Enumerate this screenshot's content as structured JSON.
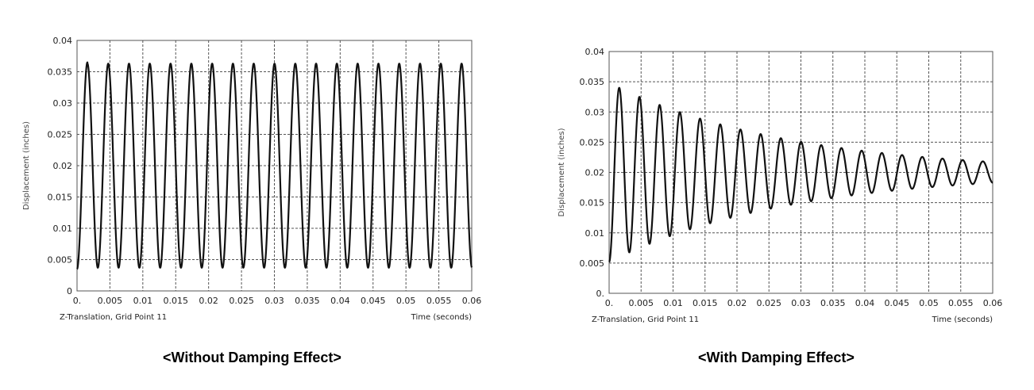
{
  "chart_data": [
    {
      "type": "line",
      "caption": "<Without Damping Effect>",
      "xlabel_left": "Z-Translation, Grid Point 11",
      "xlabel_right": "Time (seconds)",
      "ylabel": "Displacement (inches)",
      "xlim": [
        0,
        0.06
      ],
      "ylim": [
        0,
        0.04
      ],
      "xticks": [
        "0.",
        "0.005",
        "0.01",
        "0.015",
        "0.02",
        "0.025",
        "0.03",
        "0.035",
        "0.04",
        "0.045",
        "0.05",
        "0.055",
        "0.06"
      ],
      "yticks": [
        "0",
        "0.005",
        "0.01",
        "0.015",
        "0.02",
        "0.025",
        "0.03",
        "0.035",
        "0.04"
      ],
      "grid": true,
      "series": [
        {
          "period": 0.00316,
          "mean": 0.02,
          "first_peak": 0.0365,
          "steady_amplitude": 0.0163,
          "damping_ratio": 0
        }
      ]
    },
    {
      "type": "line",
      "caption": "<With Damping Effect>",
      "xlabel_left": "Z-Translation, Grid Point 11",
      "xlabel_right": "Time (seconds)",
      "ylabel": "Displacement (inches)",
      "xlim": [
        0,
        0.06
      ],
      "ylim": [
        0,
        0.04
      ],
      "xticks": [
        "0.",
        "0.005",
        "0.01",
        "0.015",
        "0.02",
        "0.025",
        "0.03",
        "0.035",
        "0.04",
        "0.045",
        "0.05",
        "0.055",
        "0.06"
      ],
      "yticks": [
        "0.",
        "0.005",
        "0.01",
        "0.015",
        "0.02",
        "0.025",
        "0.03",
        "0.035",
        "0.04"
      ],
      "grid": true,
      "series": [
        {
          "period": 0.00316,
          "mean": 0.02,
          "first_peak": 0.034,
          "damping_ratio": 0.018
        }
      ]
    }
  ]
}
